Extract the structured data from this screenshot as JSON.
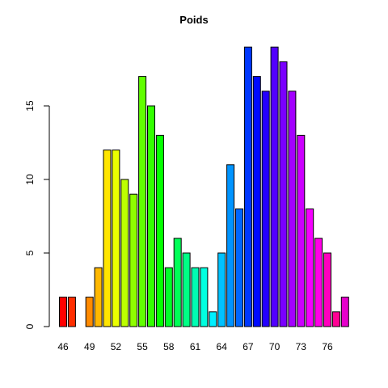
{
  "chart_data": {
    "type": "bar",
    "title": "Poids",
    "xlabel": "",
    "ylabel": "",
    "categories": [
      46,
      47,
      48,
      49,
      50,
      51,
      52,
      53,
      54,
      55,
      56,
      57,
      58,
      59,
      60,
      61,
      62,
      63,
      64,
      65,
      66,
      67,
      68,
      69,
      70,
      71,
      72,
      73,
      74,
      75,
      76,
      77,
      78
    ],
    "values": [
      2,
      2,
      0,
      2,
      4,
      12,
      12,
      10,
      9,
      17,
      15,
      13,
      4,
      6,
      5,
      4,
      4,
      1,
      5,
      11,
      8,
      19,
      17,
      16,
      19,
      18,
      16,
      13,
      8,
      6,
      5,
      1,
      2
    ],
    "x_tick_labels": [
      "46",
      "49",
      "52",
      "55",
      "58",
      "61",
      "64",
      "67",
      "70",
      "73",
      "76"
    ],
    "y_ticks": [
      0,
      5,
      10,
      15
    ],
    "ylim": [
      0,
      19
    ],
    "grid": false,
    "colors": [
      "#FF0000",
      "#FF2E00",
      "#FF5C00",
      "#FF8A00",
      "#FFB800",
      "#FFE500",
      "#EBFF00",
      "#BDFF00",
      "#8FFF00",
      "#61FF00",
      "#33FF00",
      "#05FF00",
      "#00FF29",
      "#00FF57",
      "#00FF85",
      "#00FFB3",
      "#00FFE0",
      "#00F0FF",
      "#00C2FF",
      "#0094FF",
      "#0066FF",
      "#0038FF",
      "#000AFF",
      "#2400FF",
      "#5200FF",
      "#7A00FF",
      "#A300FF",
      "#CC00FF",
      "#F500FF",
      "#FF00E6",
      "#FF00BD",
      "#FF0094",
      "#E600CC"
    ]
  }
}
